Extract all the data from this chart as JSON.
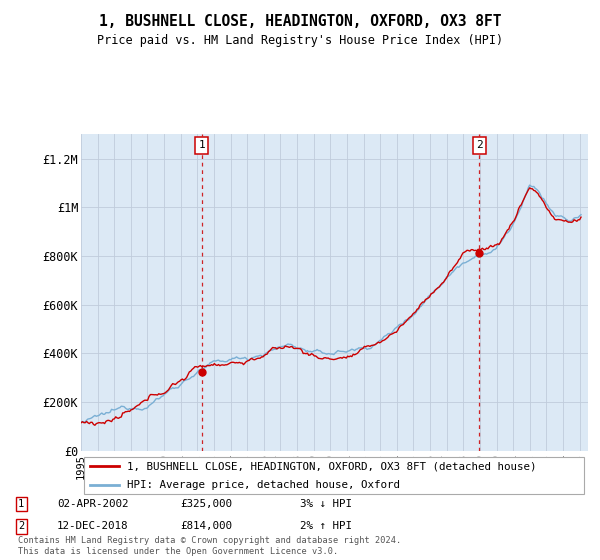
{
  "title": "1, BUSHNELL CLOSE, HEADINGTON, OXFORD, OX3 8FT",
  "subtitle": "Price paid vs. HM Land Registry's House Price Index (HPI)",
  "background_color": "#ffffff",
  "plot_bg_color": "#dce9f5",
  "hpi_color": "#7aafd4",
  "price_color": "#cc0000",
  "vline_color": "#cc0000",
  "grid_color": "#c0ccdb",
  "ylim": [
    0,
    1300000
  ],
  "yticks": [
    0,
    200000,
    400000,
    600000,
    800000,
    1000000,
    1200000
  ],
  "ytick_labels": [
    "£0",
    "£200K",
    "£400K",
    "£600K",
    "£800K",
    "£1M",
    "£1.2M"
  ],
  "xstart_year": 1995,
  "xend_year": 2025,
  "transaction1": {
    "year": 2002.27,
    "price": 325000,
    "label": "1",
    "date": "02-APR-2002",
    "pct": "3%",
    "dir": "↓"
  },
  "transaction2": {
    "year": 2018.95,
    "price": 814000,
    "label": "2",
    "date": "12-DEC-2018",
    "pct": "2%",
    "dir": "↑"
  },
  "legend_price_label": "1, BUSHNELL CLOSE, HEADINGTON, OXFORD, OX3 8FT (detached house)",
  "legend_hpi_label": "HPI: Average price, detached house, Oxford",
  "footnote": "Contains HM Land Registry data © Crown copyright and database right 2024.\nThis data is licensed under the Open Government Licence v3.0."
}
